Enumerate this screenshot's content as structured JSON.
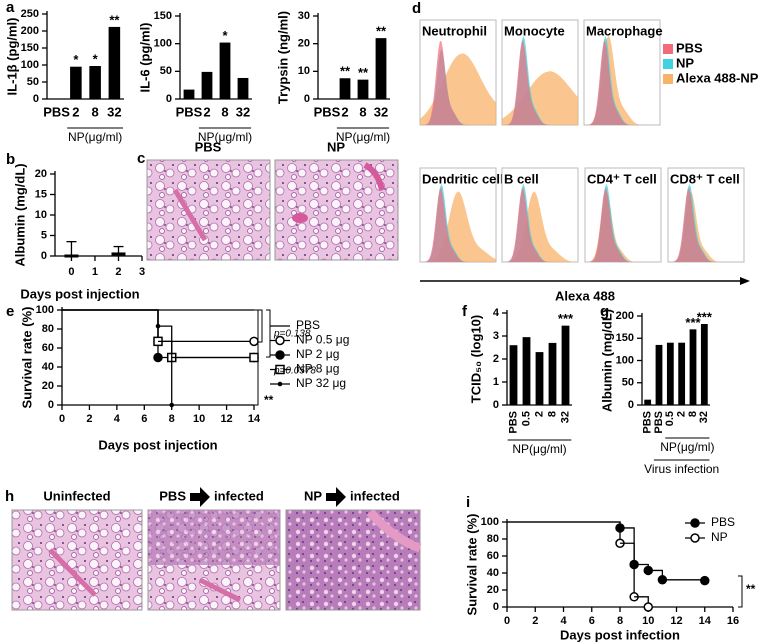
{
  "chart_data": [
    {
      "type": "bar",
      "panel_label": "a",
      "ylabel": "IL-1β (pg/ml)",
      "categories": [
        "PBS",
        "2",
        "8",
        "32"
      ],
      "values": [
        0,
        95,
        97,
        212
      ],
      "annotations": [
        null,
        "*",
        "*",
        "**"
      ],
      "group_label": "NP(μg/ml)",
      "color": "#000000",
      "ylim": [
        0,
        250
      ],
      "yticks": [
        0,
        50,
        100,
        150,
        200,
        250
      ]
    },
    {
      "type": "bar",
      "ylabel": "IL-6 (pg/ml)",
      "categories": [
        "PBS",
        "2",
        "8",
        "32"
      ],
      "values": [
        17,
        49,
        102,
        38
      ],
      "annotations": [
        null,
        null,
        "*",
        null
      ],
      "group_label": "NP(μg/ml)",
      "color": "#000000",
      "ylim": [
        0,
        150
      ],
      "yticks": [
        0,
        50,
        100,
        150
      ]
    },
    {
      "type": "bar",
      "ylabel": "Trypsin (ng/ml)",
      "categories": [
        "PBS",
        "2",
        "8",
        "32"
      ],
      "values": [
        0,
        7.5,
        7,
        22
      ],
      "annotations": [
        null,
        "**",
        "**",
        "**"
      ],
      "group_label": "NP(μg/ml)",
      "color": "#000000",
      "ylim": [
        0,
        30
      ],
      "yticks": [
        0,
        10,
        20,
        30
      ]
    },
    {
      "type": "scatter",
      "panel_label": "b",
      "ylabel": "Albumin (mg/dL)",
      "xlabel": "Days post injection",
      "x": [
        0,
        2
      ],
      "values": [
        0,
        0.5
      ],
      "errors": [
        3.5,
        1.8
      ],
      "color": "#000000",
      "xlim": [
        -0.7,
        3
      ],
      "xticks": [
        0,
        1,
        2,
        3
      ],
      "ylim": [
        0,
        20
      ],
      "yticks": [
        0,
        5,
        10,
        15,
        20
      ]
    },
    {
      "type": "survival",
      "panel_label": "e",
      "ylabel": "Survival rate (%)",
      "xlabel": "Days post injection",
      "color": "#000000",
      "xlim": [
        0,
        14
      ],
      "xticks": [
        0,
        2,
        4,
        6,
        8,
        10,
        12,
        14
      ],
      "ylim": [
        0,
        100
      ],
      "yticks": [
        0,
        20,
        40,
        60,
        80,
        100
      ],
      "series": [
        {
          "name": "PBS",
          "marker": "none",
          "x": [
            0,
            14
          ],
          "values": [
            100,
            100
          ]
        },
        {
          "name": "NP 0.5 μg",
          "marker": "circle-open",
          "x": [
            0,
            7,
            14
          ],
          "values": [
            100,
            67,
            67
          ]
        },
        {
          "name": "NP 2 μg",
          "marker": "circle",
          "x": [
            0,
            7,
            14
          ],
          "values": [
            100,
            50,
            50
          ]
        },
        {
          "name": "NP 8 μg",
          "marker": "square-open",
          "x": [
            0,
            7,
            8,
            14
          ],
          "values": [
            100,
            67,
            50,
            50
          ]
        },
        {
          "name": "NP 32 μg",
          "marker": "dot",
          "x": [
            0,
            7,
            8
          ],
          "values": [
            100,
            83,
            0
          ]
        }
      ],
      "annotations": [
        "p=0.138",
        "p=0.0578",
        "**"
      ]
    },
    {
      "type": "bar",
      "panel_label": "f",
      "ylabel": "TCID₅₀ (log10)",
      "categories": [
        "PBS",
        "0.5",
        "2",
        "8",
        "32"
      ],
      "values": [
        2.6,
        2.95,
        2.3,
        2.7,
        3.45
      ],
      "annotations": [
        null,
        null,
        null,
        null,
        "***"
      ],
      "group_label": "NP(μg/ml)",
      "color": "#000000",
      "ylim": [
        0,
        4
      ],
      "yticks": [
        0,
        1,
        2,
        3,
        4
      ]
    },
    {
      "type": "bar",
      "panel_label": "g",
      "ylabel": "Albumin (mg/dL)",
      "categories": [
        "PBS",
        "PBS",
        "0.5",
        "2",
        "8",
        "32"
      ],
      "values": [
        12,
        135,
        140,
        140,
        170,
        182
      ],
      "annotations": [
        null,
        null,
        null,
        null,
        "***",
        "***"
      ],
      "group_labels": [
        "NP(μg/ml)",
        "Virus infection"
      ],
      "color": "#000000",
      "ylim": [
        0,
        200
      ],
      "yticks": [
        0,
        50,
        100,
        150,
        200
      ]
    },
    {
      "type": "survival",
      "panel_label": "i",
      "ylabel": "Survival rate (%)",
      "xlabel": "Days post infection",
      "color": "#000000",
      "xlim": [
        0,
        16
      ],
      "xticks": [
        0,
        2,
        4,
        6,
        8,
        10,
        12,
        14,
        16
      ],
      "ylim": [
        0,
        100
      ],
      "yticks": [
        0,
        20,
        40,
        60,
        80,
        100
      ],
      "series": [
        {
          "name": "PBS",
          "marker": "circle",
          "x": [
            0,
            8,
            9,
            10,
            11,
            14
          ],
          "values": [
            100,
            93,
            50,
            43,
            32,
            31
          ]
        },
        {
          "name": "NP",
          "marker": "circle-open",
          "x": [
            0,
            8,
            9,
            10
          ],
          "values": [
            100,
            75,
            12,
            0
          ]
        }
      ],
      "annotations": [
        "**"
      ]
    }
  ],
  "flow_panel": {
    "panel_label": "d",
    "cells": [
      "Neutrophil",
      "Monocyte",
      "Macrophage",
      "Dendritic cell",
      "B cell",
      "CD4⁺ T cell",
      "CD8⁺ T cell"
    ],
    "legend": [
      {
        "name": "PBS",
        "color": "#f26b7a"
      },
      {
        "name": "NP",
        "color": "#3fd3e0"
      },
      {
        "name": "Alexa 488-NP",
        "color": "#f9b26a"
      }
    ],
    "xlabel": "Alexa 488"
  },
  "micrographs_c": {
    "panel_label": "c",
    "labels": [
      "PBS",
      "NP"
    ]
  },
  "micrographs_h": {
    "panel_label": "h",
    "labels": [
      "Uninfected",
      {
        "from": "PBS",
        "to": "infected"
      },
      {
        "from": "NP",
        "to": "infected"
      }
    ]
  }
}
